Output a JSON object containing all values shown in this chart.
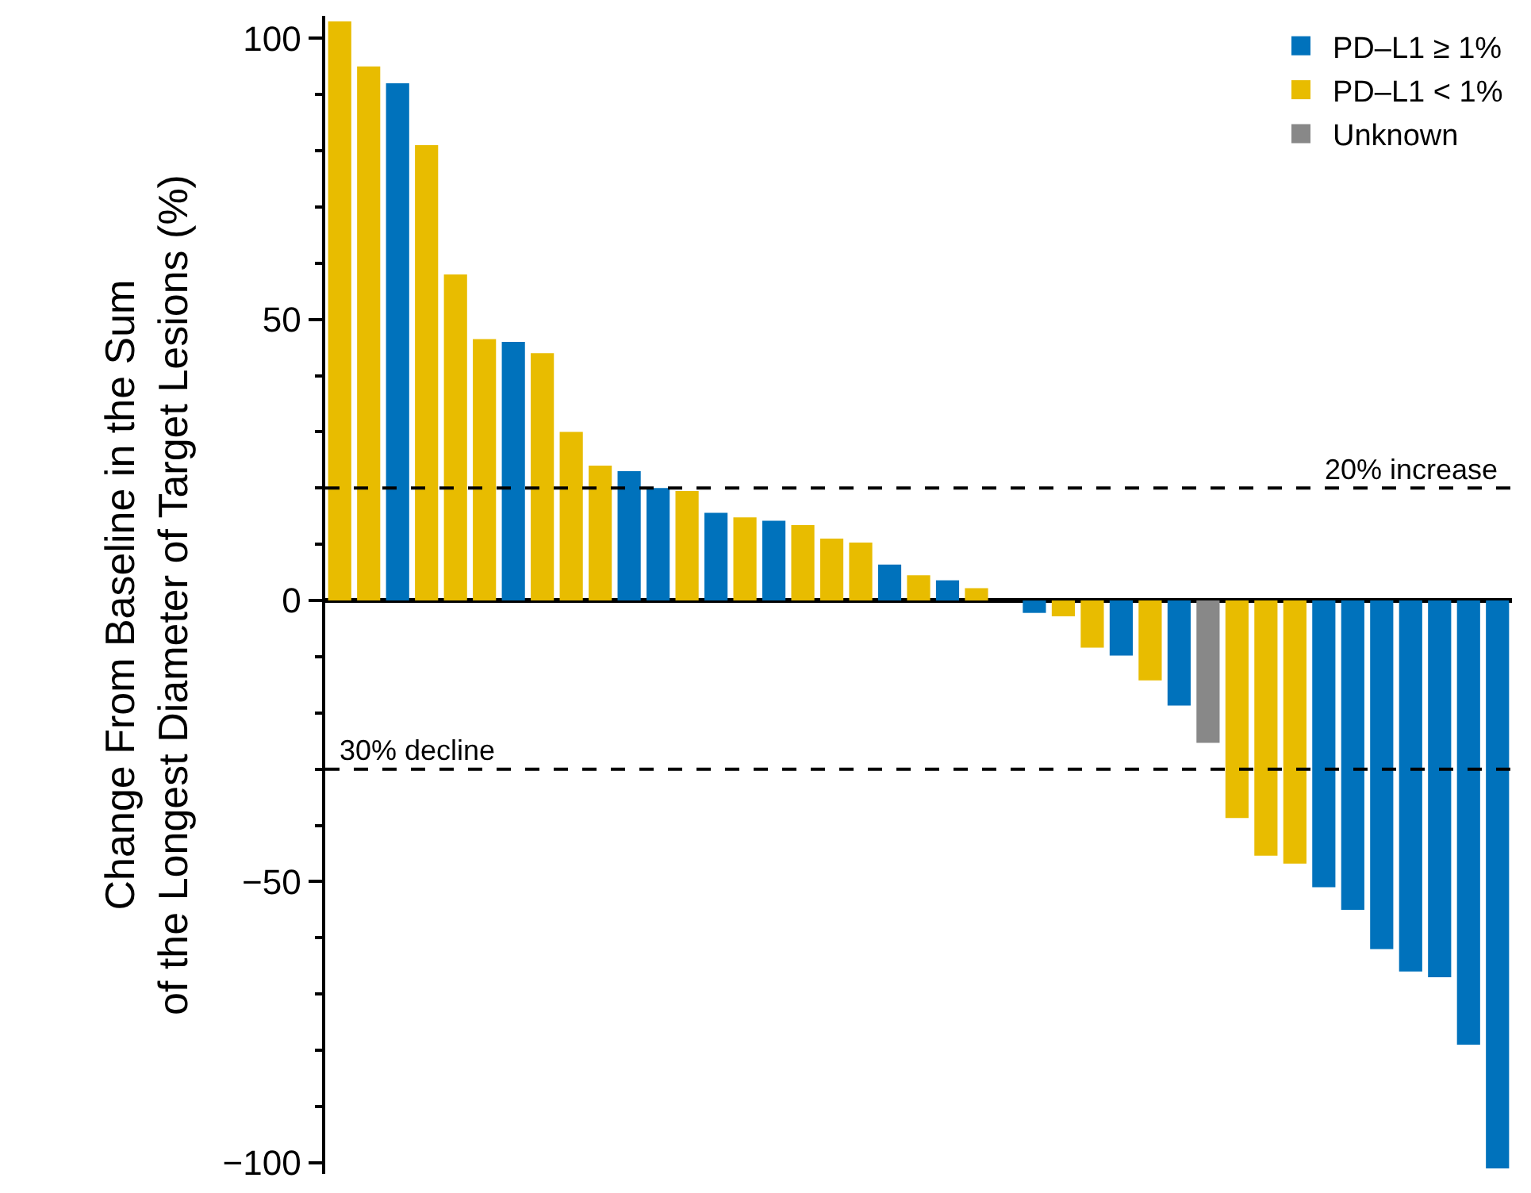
{
  "chart_data": {
    "type": "bar",
    "ylabel": "Change From Baseline in the Sum\nof the Longest Diameter of Target Lesions (%)",
    "categories": [
      null,
      null,
      null,
      null,
      null,
      null,
      null,
      null,
      null,
      null,
      null,
      null,
      null,
      null,
      null,
      null,
      null,
      null,
      null,
      null,
      null,
      null,
      null,
      null,
      null,
      null,
      null,
      null,
      null,
      null,
      null,
      null,
      null,
      null,
      null,
      null,
      null,
      null,
      null,
      null,
      null
    ],
    "series": [
      {
        "name": "PD–L1 ≥ 1%",
        "color": "#0072bc",
        "values": [
          null,
          null,
          92,
          null,
          null,
          null,
          46,
          null,
          null,
          null,
          23,
          20,
          null,
          15.6,
          null,
          14.2,
          null,
          null,
          null,
          6.4,
          null,
          3.6,
          null,
          null,
          -2.2,
          null,
          null,
          -9.8,
          null,
          -18.7,
          null,
          null,
          null,
          null,
          -51,
          -55,
          -62,
          -66,
          -67,
          -79,
          -101
        ]
      },
      {
        "name": "PD–L1 < 1%",
        "color": "#e8bc00",
        "values": [
          103,
          95,
          null,
          81,
          58,
          46.5,
          null,
          44,
          30,
          24,
          null,
          null,
          19.5,
          null,
          14.8,
          null,
          13.4,
          11,
          10.3,
          null,
          4.5,
          null,
          2.2,
          null,
          null,
          -2.8,
          -8.4,
          null,
          -14.2,
          null,
          null,
          -38.7,
          -45.4,
          -46.8,
          null,
          null,
          null,
          null,
          null,
          null,
          null
        ]
      },
      {
        "name": "Unknown",
        "color": "#888888",
        "values": [
          null,
          null,
          null,
          null,
          null,
          null,
          null,
          null,
          null,
          null,
          null,
          null,
          null,
          null,
          null,
          null,
          null,
          null,
          null,
          null,
          null,
          null,
          null,
          null,
          null,
          null,
          null,
          null,
          null,
          null,
          -25.3,
          null,
          null,
          null,
          null,
          null,
          null,
          null,
          null,
          null,
          null
        ]
      }
    ],
    "ylim": [
      -102,
      104
    ],
    "yticks": [
      {
        "value": -100,
        "label": "−100"
      },
      {
        "value": -90,
        "label": null
      },
      {
        "value": -80,
        "label": null
      },
      {
        "value": -70,
        "label": null
      },
      {
        "value": -60,
        "label": null
      },
      {
        "value": -50,
        "label": "−50"
      },
      {
        "value": -40,
        "label": null
      },
      {
        "value": -30,
        "label": null
      },
      {
        "value": -20,
        "label": null
      },
      {
        "value": -10,
        "label": null
      },
      0,
      {
        "value": 10,
        "label": null
      },
      {
        "value": 20,
        "label": null
      },
      {
        "value": 30,
        "label": null
      },
      {
        "value": 40,
        "label": null
      },
      50,
      {
        "value": 60,
        "label": null
      },
      {
        "value": 70,
        "label": null
      },
      {
        "value": 80,
        "label": null
      },
      {
        "value": 90,
        "label": null
      },
      100
    ],
    "ref_lines": [
      {
        "axis": "y",
        "value": 20,
        "label": "20% increase",
        "line_style": "dashed",
        "color": "#000000"
      },
      {
        "axis": "y",
        "value": -30,
        "label": "30% decline",
        "line_style": "dashed",
        "color": "#000000"
      }
    ],
    "legend": "top right",
    "tick_labels": "y"
  }
}
